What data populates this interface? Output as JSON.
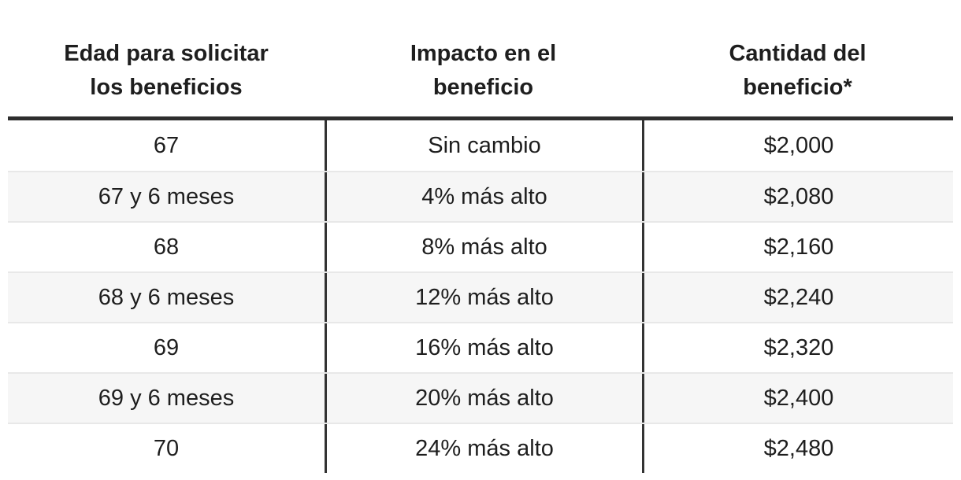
{
  "table": {
    "headers": [
      {
        "line1": "Edad para solicitar",
        "line2": "los beneficios"
      },
      {
        "line1": "Impacto en el",
        "line2": "beneficio"
      },
      {
        "line1": "Cantidad del",
        "line2": "beneficio*"
      }
    ],
    "rows": [
      {
        "age": "67",
        "impact": "Sin cambio",
        "amount": "$2,000"
      },
      {
        "age": "67 y 6 meses",
        "impact": "4% más alto",
        "amount": "$2,080"
      },
      {
        "age": "68",
        "impact": "8% más alto",
        "amount": "$2,160"
      },
      {
        "age": "68 y 6 meses",
        "impact": "12% más alto",
        "amount": "$2,240"
      },
      {
        "age": "69",
        "impact": "16% más alto",
        "amount": "$2,320"
      },
      {
        "age": "69 y 6 meses",
        "impact": "20% más alto",
        "amount": "$2,400"
      },
      {
        "age": "70",
        "impact": "24% más alto",
        "amount": "$2,480"
      }
    ]
  },
  "colors": {
    "text": "#1e1e1e",
    "header_rule": "#2e2e2e",
    "column_divider": "#333333",
    "row_stripe": "#f6f6f6",
    "row_divider": "#e8e8e8",
    "background": "#ffffff"
  },
  "chart_data": {
    "type": "table",
    "columns": [
      "Edad para solicitar los beneficios",
      "Impacto en el beneficio",
      "Cantidad del beneficio*"
    ],
    "rows": [
      [
        "67",
        "Sin cambio",
        "$2,000"
      ],
      [
        "67 y 6 meses",
        "4% más alto",
        "$2,080"
      ],
      [
        "68",
        "8% más alto",
        "$2,160"
      ],
      [
        "68 y 6 meses",
        "12% más alto",
        "$2,240"
      ],
      [
        "69",
        "16% más alto",
        "$2,320"
      ],
      [
        "69 y 6 meses",
        "20% más alto",
        "$2,400"
      ],
      [
        "70",
        "24% más alto",
        "$2,480"
      ]
    ]
  }
}
